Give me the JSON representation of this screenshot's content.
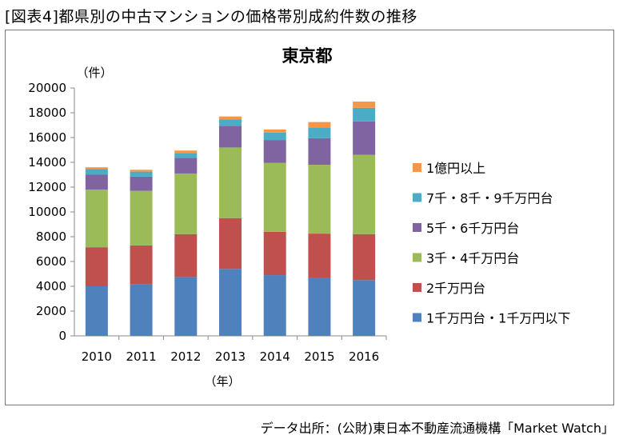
{
  "header": {
    "figure_title": "[図表4]都県別の中古マンションの価格帯別成約件数の推移",
    "source": "データ出所：(公財)東日本不動産流通機構「Market Watch」"
  },
  "chart_data": {
    "type": "bar",
    "stacked": true,
    "title": "東京都",
    "ylabel": "（件）",
    "xlabel": "（年）",
    "ylim": [
      0,
      20000
    ],
    "ytick_step": 2000,
    "grid": false,
    "legend_position": "right",
    "categories": [
      "2010",
      "2011",
      "2012",
      "2013",
      "2014",
      "2015",
      "2016"
    ],
    "series": [
      {
        "name": "1千万円台・1千万円以下",
        "color": "#4F81BD",
        "values": [
          4000,
          4150,
          4750,
          5400,
          4900,
          4650,
          4500
        ]
      },
      {
        "name": "2千万円台",
        "color": "#C0504D",
        "values": [
          3150,
          3150,
          3450,
          4100,
          3500,
          3600,
          3700
        ]
      },
      {
        "name": "3千・4千万円台",
        "color": "#9BBB59",
        "values": [
          4650,
          4400,
          4900,
          5700,
          5550,
          5550,
          6400
        ]
      },
      {
        "name": "5千・6千万円台",
        "color": "#8064A2",
        "values": [
          1200,
          1150,
          1250,
          1750,
          1850,
          2150,
          2700
        ]
      },
      {
        "name": "7千・8千・9千万円台",
        "color": "#4BACC6",
        "values": [
          450,
          400,
          400,
          500,
          600,
          850,
          1100
        ]
      },
      {
        "name": "1億円以上",
        "color": "#F79646",
        "values": [
          150,
          150,
          200,
          250,
          250,
          450,
          500
        ]
      }
    ]
  }
}
